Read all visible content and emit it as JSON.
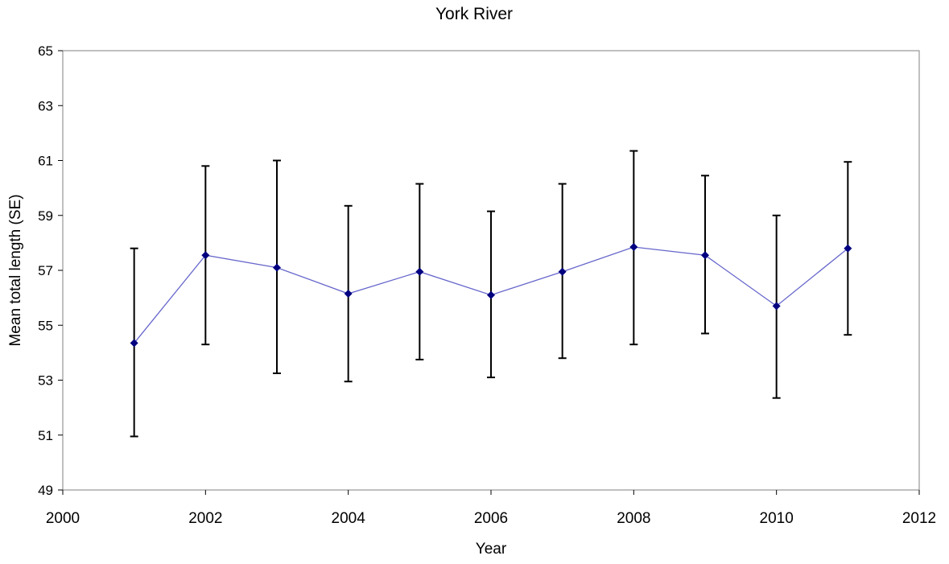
{
  "chart_data": {
    "type": "line",
    "title": "York River",
    "xlabel": "Year",
    "ylabel": "Mean total length (SE)",
    "xlim": [
      2000,
      2012
    ],
    "ylim": [
      49,
      65
    ],
    "xticks": [
      2000,
      2002,
      2004,
      2006,
      2008,
      2010,
      2012
    ],
    "yticks": [
      49,
      51,
      53,
      55,
      57,
      59,
      61,
      63,
      65
    ],
    "grid": false,
    "legend": "none",
    "colors": {
      "line": "#6666cc",
      "marker": "#000080",
      "error_bar": "#000000",
      "plot_border": "#808080"
    },
    "series": [
      {
        "x": [
          2001,
          2002,
          2003,
          2004,
          2005,
          2006,
          2007,
          2008,
          2009,
          2010,
          2011
        ],
        "y": [
          54.35,
          57.55,
          57.1,
          56.15,
          56.95,
          56.1,
          56.95,
          57.85,
          57.55,
          55.7,
          57.8
        ],
        "error_low": [
          50.95,
          54.3,
          53.25,
          52.95,
          53.75,
          53.1,
          53.8,
          54.3,
          54.7,
          52.35,
          54.65
        ],
        "error_high": [
          57.8,
          60.8,
          61.0,
          59.35,
          60.15,
          59.15,
          60.15,
          61.35,
          60.45,
          59.0,
          60.95
        ]
      }
    ]
  }
}
